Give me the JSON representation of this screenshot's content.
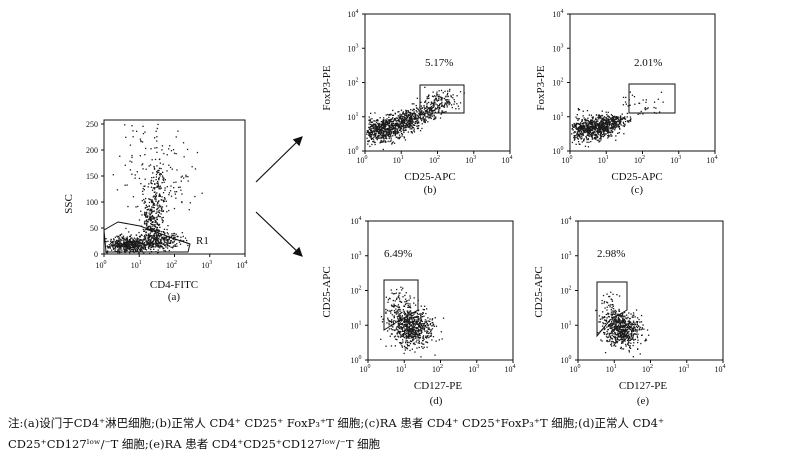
{
  "panels": {
    "a": {
      "xlabel": "CD4-FITC",
      "ylabel": "SSC",
      "sub": "(a)",
      "gate": "R1",
      "xticks": [
        {
          "base": "10",
          "exp": "0"
        },
        {
          "base": "10",
          "exp": "1"
        },
        {
          "base": "10",
          "exp": "2"
        },
        {
          "base": "10",
          "exp": "3"
        },
        {
          "base": "10",
          "exp": "4"
        }
      ],
      "yticks": [
        "0",
        "50",
        "100",
        "150",
        "200",
        "250"
      ]
    },
    "b": {
      "xlabel": "CD25-APC",
      "ylabel": "FoxP3-PE",
      "sub": "(b)",
      "pct": "5.17%",
      "xticks": [
        {
          "base": "10",
          "exp": "0"
        },
        {
          "base": "10",
          "exp": "1"
        },
        {
          "base": "10",
          "exp": "2"
        },
        {
          "base": "10",
          "exp": "3"
        },
        {
          "base": "10",
          "exp": "4"
        }
      ],
      "yticks": [
        {
          "base": "10",
          "exp": "0"
        },
        {
          "base": "10",
          "exp": "1"
        },
        {
          "base": "10",
          "exp": "2"
        },
        {
          "base": "10",
          "exp": "3"
        },
        {
          "base": "10",
          "exp": "4"
        }
      ]
    },
    "c": {
      "xlabel": "CD25-APC",
      "ylabel": "FoxP3-PE",
      "sub": "(c)",
      "pct": "2.01%",
      "xticks": [
        {
          "base": "10",
          "exp": "0"
        },
        {
          "base": "10",
          "exp": "1"
        },
        {
          "base": "10",
          "exp": "2"
        },
        {
          "base": "10",
          "exp": "3"
        },
        {
          "base": "10",
          "exp": "4"
        }
      ],
      "yticks": [
        {
          "base": "10",
          "exp": "0"
        },
        {
          "base": "10",
          "exp": "1"
        },
        {
          "base": "10",
          "exp": "2"
        },
        {
          "base": "10",
          "exp": "3"
        },
        {
          "base": "10",
          "exp": "4"
        }
      ]
    },
    "d": {
      "xlabel": "CD127-PE",
      "ylabel": "CD25-APC",
      "sub": "(d)",
      "pct": "6.49%",
      "xticks": [
        {
          "base": "10",
          "exp": "0"
        },
        {
          "base": "10",
          "exp": "1"
        },
        {
          "base": "10",
          "exp": "2"
        },
        {
          "base": "10",
          "exp": "3"
        },
        {
          "base": "10",
          "exp": "4"
        }
      ],
      "yticks": [
        {
          "base": "10",
          "exp": "0"
        },
        {
          "base": "10",
          "exp": "1"
        },
        {
          "base": "10",
          "exp": "2"
        },
        {
          "base": "10",
          "exp": "3"
        },
        {
          "base": "10",
          "exp": "4"
        }
      ]
    },
    "e": {
      "xlabel": "CD127-PE",
      "ylabel": "CD25-APC",
      "sub": "(e)",
      "pct": "2.98%",
      "xticks": [
        {
          "base": "10",
          "exp": "0"
        },
        {
          "base": "10",
          "exp": "1"
        },
        {
          "base": "10",
          "exp": "2"
        },
        {
          "base": "10",
          "exp": "3"
        },
        {
          "base": "10",
          "exp": "4"
        }
      ],
      "yticks": [
        {
          "base": "10",
          "exp": "0"
        },
        {
          "base": "10",
          "exp": "1"
        },
        {
          "base": "10",
          "exp": "2"
        },
        {
          "base": "10",
          "exp": "3"
        },
        {
          "base": "10",
          "exp": "4"
        }
      ]
    }
  },
  "caption": {
    "line1": "注:(a)设门于CD4⁺淋巴细胞;(b)正常人 CD4⁺ CD25⁺ FoxP₃⁺T 细胞;(c)RA 患者 CD4⁺ CD25⁺FoxP₃⁺T 细胞;(d)正常人 CD4⁺",
    "line2": "CD25⁺CD127ˡᵒʷ/⁻T 细胞;(e)RA 患者 CD4⁺CD25⁺CD127ˡᵒʷ/⁻T 细胞"
  },
  "colors": {
    "ink": "#111111",
    "dots": "#1a1a1a"
  }
}
